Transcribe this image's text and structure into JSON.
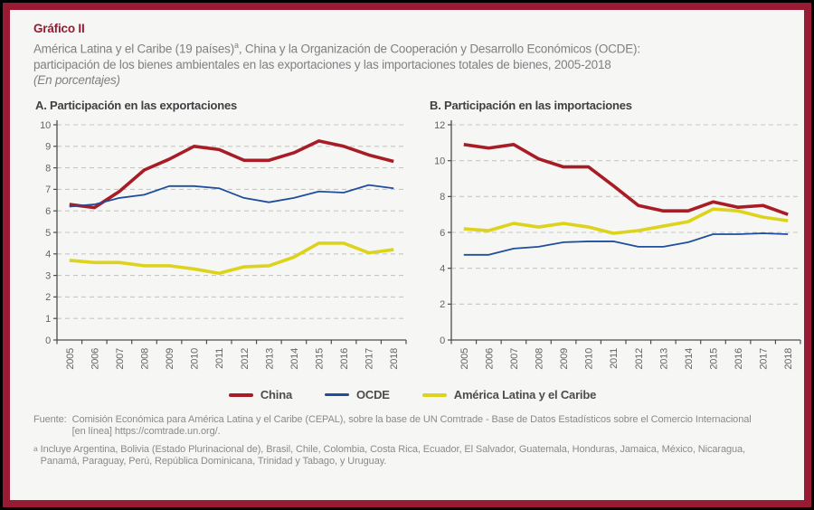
{
  "theme": {
    "accent": "#981b33",
    "page_background": "#f6f6f4",
    "outer_border": "#000000",
    "grid_color": "#c6c6c6",
    "axis_color": "#4d4d4f",
    "axis_text_color": "#636466"
  },
  "header": {
    "label": "Gráfico II",
    "title_part1": "América Latina y el Caribe (19 países)",
    "title_footnote_marker": "a",
    "title_part2": ", China y la Organización de Cooperación y Desarrollo Económicos (OCDE):",
    "title_line2": "participación de los bienes ambientales en las exportaciones y las importaciones totales de bienes, 2005-2018",
    "unit_note": "(En porcentajes)"
  },
  "legend": {
    "items": [
      {
        "label": "China",
        "color": "#a81c26",
        "thick": true
      },
      {
        "label": "OCDE",
        "color": "#1e4e9c",
        "thick": false
      },
      {
        "label": "América Latina y el Caribe",
        "color": "#ddd31c",
        "thick": true
      }
    ]
  },
  "chart_data": [
    {
      "type": "line",
      "title": "A. Participación en las exportaciones",
      "categories": [
        "2005",
        "2006",
        "2007",
        "2008",
        "2009",
        "2010",
        "2011",
        "2012",
        "2013",
        "2014",
        "2015",
        "2016",
        "2017",
        "2018"
      ],
      "ylim": [
        0,
        10
      ],
      "ytick_step": 1,
      "grid": "horizontal-dashed",
      "legend_position": "bottom-shared",
      "series": [
        {
          "name": "China",
          "color": "#a81c26",
          "line_width": 3.6,
          "values": [
            6.3,
            6.15,
            6.9,
            7.9,
            8.4,
            9.0,
            8.85,
            8.35,
            8.35,
            8.7,
            9.25,
            9.0,
            8.6,
            8.3
          ]
        },
        {
          "name": "OCDE",
          "color": "#1e4e9c",
          "line_width": 1.8,
          "values": [
            6.2,
            6.3,
            6.6,
            6.75,
            7.15,
            7.15,
            7.05,
            6.6,
            6.4,
            6.6,
            6.9,
            6.85,
            7.2,
            7.05
          ]
        },
        {
          "name": "América Latina y el Caribe",
          "color": "#ddd31c",
          "line_width": 3.6,
          "values": [
            3.7,
            3.6,
            3.6,
            3.45,
            3.45,
            3.3,
            3.1,
            3.4,
            3.45,
            3.85,
            4.5,
            4.5,
            4.05,
            4.2
          ]
        }
      ]
    },
    {
      "type": "line",
      "title": "B. Participación en las importaciones",
      "categories": [
        "2005",
        "2006",
        "2007",
        "2008",
        "2009",
        "2010",
        "2011",
        "2012",
        "2013",
        "2014",
        "2015",
        "2016",
        "2017",
        "2018"
      ],
      "ylim": [
        0,
        12
      ],
      "ytick_step": 2,
      "grid": "horizontal-dashed",
      "legend_position": "bottom-shared",
      "series": [
        {
          "name": "China",
          "color": "#a81c26",
          "line_width": 3.6,
          "values": [
            10.9,
            10.7,
            10.9,
            10.1,
            9.65,
            9.65,
            8.6,
            7.5,
            7.2,
            7.2,
            7.7,
            7.4,
            7.5,
            7.0
          ]
        },
        {
          "name": "OCDE",
          "color": "#1e4e9c",
          "line_width": 1.8,
          "values": [
            4.75,
            4.75,
            5.1,
            5.2,
            5.45,
            5.5,
            5.5,
            5.2,
            5.2,
            5.45,
            5.9,
            5.9,
            5.95,
            5.9
          ]
        },
        {
          "name": "América Latina y el Caribe",
          "color": "#ddd31c",
          "line_width": 3.6,
          "values": [
            6.2,
            6.1,
            6.5,
            6.3,
            6.5,
            6.3,
            5.95,
            6.1,
            6.35,
            6.6,
            7.3,
            7.2,
            6.85,
            6.65
          ]
        }
      ]
    }
  ],
  "footer": {
    "source_label": "Fuente:",
    "source_line1": "Comisión Económica para América Latina y el Caribe (CEPAL), sobre la base de UN Comtrade - Base de Datos Estadísticos sobre el Comercio Internacional",
    "source_line2": "[en línea] https://comtrade.un.org/.",
    "footnote_marker": "a",
    "footnote_line1": "Incluye Argentina, Bolivia (Estado Plurinacional de), Brasil, Chile, Colombia, Costa Rica, Ecuador, El Salvador, Guatemala, Honduras, Jamaica, México, Nicaragua,",
    "footnote_line2": "Panamá, Paraguay, Perú, República Dominicana, Trinidad y Tabago, y Uruguay."
  }
}
